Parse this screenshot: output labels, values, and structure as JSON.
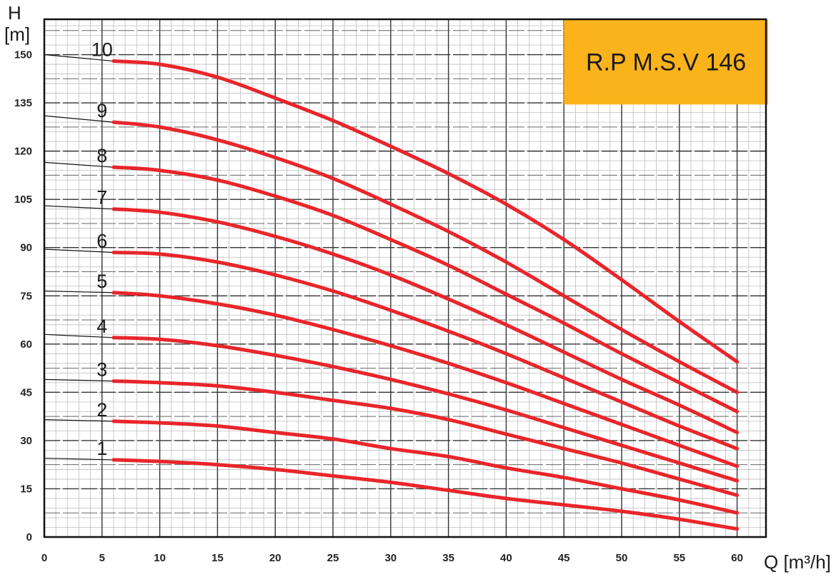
{
  "chart_data": {
    "type": "line",
    "title": "R.P M.S.V 146",
    "xlabel": "Q [m³/h]",
    "ylabel_symbol": "H",
    "ylabel_unit": "[m]",
    "xlim": [
      0,
      62.5
    ],
    "ylim": [
      0,
      161
    ],
    "x_ticks": [
      0,
      5,
      10,
      15,
      20,
      25,
      30,
      35,
      40,
      45,
      50,
      55,
      60
    ],
    "y_ticks": [
      0,
      15,
      30,
      45,
      60,
      75,
      90,
      105,
      120,
      135,
      150
    ],
    "grid": true,
    "colors": {
      "curve": "#e8262b",
      "title_box": "#fbb31b",
      "grid_major": "#333333",
      "grid_minor": "#bdbdbd"
    },
    "series": [
      {
        "name": "1",
        "shutoff": 24.5,
        "x": [
          6,
          10,
          15,
          20,
          25,
          30,
          35,
          40,
          45,
          50,
          55,
          60
        ],
        "y": [
          24,
          23.5,
          22.5,
          21,
          19,
          17,
          14.5,
          12,
          10,
          8,
          5.5,
          2.5
        ]
      },
      {
        "name": "2",
        "shutoff": 36.5,
        "x": [
          6,
          10,
          15,
          20,
          25,
          30,
          35,
          40,
          45,
          50,
          55,
          60
        ],
        "y": [
          36,
          35.5,
          34.5,
          32.5,
          30.5,
          27.5,
          25,
          21.5,
          18.5,
          15,
          11.5,
          7.5
        ]
      },
      {
        "name": "3",
        "shutoff": 49,
        "x": [
          6,
          10,
          15,
          20,
          25,
          30,
          35,
          40,
          45,
          50,
          55,
          60
        ],
        "y": [
          48.5,
          48,
          47,
          45,
          42.5,
          40,
          36.5,
          32,
          27.5,
          23,
          18,
          13
        ]
      },
      {
        "name": "4",
        "shutoff": 63,
        "x": [
          6,
          10,
          15,
          20,
          25,
          30,
          35,
          40,
          45,
          50,
          55,
          60
        ],
        "y": [
          62,
          61.5,
          59.5,
          56.5,
          53,
          49,
          44.5,
          39.5,
          34,
          28.5,
          23,
          17.5
        ]
      },
      {
        "name": "5",
        "shutoff": 76.5,
        "x": [
          6,
          10,
          15,
          20,
          25,
          30,
          35,
          40,
          45,
          50,
          55,
          60
        ],
        "y": [
          76,
          75,
          72.5,
          69,
          64.5,
          59.5,
          54,
          48,
          41.5,
          35,
          28.5,
          22
        ]
      },
      {
        "name": "6",
        "shutoff": 89.5,
        "x": [
          6,
          10,
          15,
          20,
          25,
          30,
          35,
          40,
          45,
          50,
          55,
          60
        ],
        "y": [
          88.5,
          88,
          85.5,
          81.5,
          76.5,
          70.5,
          64,
          57,
          49.5,
          42,
          34.5,
          27.5
        ]
      },
      {
        "name": "7",
        "shutoff": 103,
        "x": [
          6,
          10,
          15,
          20,
          25,
          30,
          35,
          40,
          45,
          50,
          55,
          60
        ],
        "y": [
          102,
          101,
          98,
          93.5,
          88,
          81.5,
          74,
          66,
          57.5,
          49,
          41,
          32.5
        ]
      },
      {
        "name": "8",
        "shutoff": 116.5,
        "x": [
          6,
          10,
          15,
          20,
          25,
          30,
          35,
          40,
          45,
          50,
          55,
          60
        ],
        "y": [
          115,
          114,
          111,
          106,
          100,
          92.5,
          84.5,
          75.5,
          66.5,
          57,
          48,
          39
        ]
      },
      {
        "name": "9",
        "shutoff": 131,
        "x": [
          6,
          10,
          15,
          20,
          25,
          30,
          35,
          40,
          45,
          50,
          55,
          60
        ],
        "y": [
          129,
          127.5,
          123.5,
          118,
          111.5,
          103.5,
          95,
          85.5,
          75,
          64.5,
          54.5,
          45
        ]
      },
      {
        "name": "10",
        "shutoff": 150,
        "x": [
          6,
          10,
          15,
          20,
          25,
          30,
          35,
          40,
          45,
          50,
          55,
          60
        ],
        "y": [
          148,
          147,
          143,
          136.5,
          129.5,
          121.5,
          113,
          103.5,
          92.5,
          80,
          67,
          54.5
        ]
      }
    ]
  }
}
